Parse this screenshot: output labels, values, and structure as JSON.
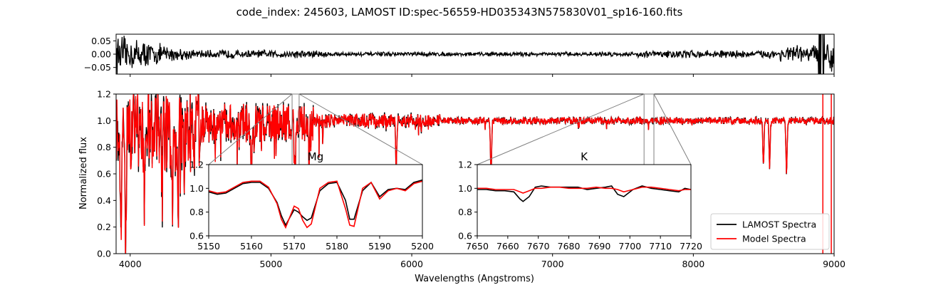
{
  "figure": {
    "title": "code_index: 245603, LAMOST ID:spec-56559-HD035343N575830V01_sp16-160.fits"
  },
  "chart_data": [
    {
      "id": "residual",
      "type": "line",
      "xlim": [
        3900,
        9000
      ],
      "ylim": [
        -0.075,
        0.075
      ],
      "yticks": [
        {
          "v": 0.05,
          "label": "0.05"
        },
        {
          "v": 0.0,
          "label": "0.00"
        },
        {
          "v": -0.05,
          "label": "−0.05"
        }
      ],
      "xticks": [
        4000,
        5000,
        6000,
        7000,
        8000,
        9000
      ],
      "series": [
        {
          "color": "#000000",
          "noise": "increases toward the blue (<4500) and red (>8500) ends, range about ±0.07"
        }
      ]
    },
    {
      "id": "main",
      "type": "line",
      "xlim": [
        3900,
        9000
      ],
      "ylim": [
        0.0,
        1.2
      ],
      "xlabel": "Wavelengths (Angstroms)",
      "ylabel": "Normalized flux",
      "xticks": [
        {
          "v": 4000,
          "label": "4000"
        },
        {
          "v": 5000,
          "label": "5000"
        },
        {
          "v": 6000,
          "label": "6000"
        },
        {
          "v": 7000,
          "label": "7000"
        },
        {
          "v": 8000,
          "label": "8000"
        },
        {
          "v": 9000,
          "label": "9000"
        }
      ],
      "yticks": [
        {
          "v": 0.0,
          "label": "0.0"
        },
        {
          "v": 0.2,
          "label": "0.2"
        },
        {
          "v": 0.4,
          "label": "0.4"
        },
        {
          "v": 0.6,
          "label": "0.6"
        },
        {
          "v": 0.8,
          "label": "0.8"
        },
        {
          "v": 1.0,
          "label": "1.0"
        },
        {
          "v": 1.2,
          "label": "1.2"
        }
      ],
      "legend": {
        "position": "lower-right",
        "entries": [
          {
            "label": "LAMOST Spectra",
            "color": "#000000"
          },
          {
            "label": "Model Spectra",
            "color": "#ff0000"
          }
        ]
      },
      "features": [
        {
          "x": 3934,
          "depth": 0.88
        },
        {
          "x": 3968,
          "depth": 0.85
        },
        {
          "x": 4101,
          "depth": 0.45
        },
        {
          "x": 4227,
          "depth": 0.45
        },
        {
          "x": 4300,
          "depth": 0.6
        },
        {
          "x": 4340,
          "depth": 0.55
        },
        {
          "x": 4384,
          "depth": 0.35
        },
        {
          "x": 4861,
          "depth": 0.35
        },
        {
          "x": 5167,
          "depth": 0.35
        },
        {
          "x": 5270,
          "depth": 0.3
        },
        {
          "x": 5890,
          "depth": 0.35
        },
        {
          "x": 6563,
          "depth": 0.42
        },
        {
          "x": 8498,
          "depth": 0.35
        },
        {
          "x": 8542,
          "depth": 0.35
        },
        {
          "x": 8662,
          "depth": 0.38
        }
      ],
      "zoom_regions": [
        {
          "label": "Mg",
          "xlim": [
            5150,
            5200
          ]
        },
        {
          "label": "K",
          "xlim": [
            7650,
            7720
          ]
        }
      ]
    },
    {
      "id": "inset-mg",
      "title": "Mg",
      "type": "line",
      "xlim": [
        5150,
        5200
      ],
      "ylim": [
        0.6,
        1.2
      ],
      "xticks": [
        {
          "v": 5150,
          "label": "5150"
        },
        {
          "v": 5160,
          "label": "5160"
        },
        {
          "v": 5170,
          "label": "5170"
        },
        {
          "v": 5180,
          "label": "5180"
        },
        {
          "v": 5190,
          "label": "5190"
        },
        {
          "v": 5200,
          "label": "5200"
        }
      ],
      "yticks": [
        {
          "v": 0.6,
          "label": "0.6"
        },
        {
          "v": 0.8,
          "label": "0.8"
        },
        {
          "v": 1.0,
          "label": "1.0"
        },
        {
          "v": 1.2,
          "label": "1.2"
        }
      ],
      "series": [
        {
          "name": "LAMOST Spectra",
          "color": "#000000",
          "x": [
            5150,
            5152,
            5154,
            5156,
            5158,
            5160,
            5162,
            5164,
            5166,
            5167,
            5168,
            5170,
            5171,
            5172,
            5173,
            5174,
            5176,
            5178,
            5180,
            5182,
            5183,
            5184,
            5186,
            5188,
            5190,
            5192,
            5194,
            5196,
            5198,
            5200
          ],
          "y": [
            0.97,
            0.95,
            0.96,
            1.0,
            1.04,
            1.05,
            1.05,
            1.0,
            0.88,
            0.77,
            0.69,
            0.82,
            0.8,
            0.76,
            0.73,
            0.75,
            0.98,
            1.04,
            1.05,
            0.9,
            0.74,
            0.74,
            0.98,
            1.05,
            0.93,
            0.99,
            1.0,
            0.99,
            1.05,
            1.07
          ]
        },
        {
          "name": "Model Spectra",
          "color": "#ff0000",
          "x": [
            5150,
            5152,
            5154,
            5156,
            5158,
            5160,
            5162,
            5164,
            5166,
            5167,
            5168,
            5170,
            5171,
            5172,
            5173,
            5174,
            5176,
            5178,
            5180,
            5182,
            5183,
            5184,
            5186,
            5188,
            5190,
            5192,
            5194,
            5196,
            5198,
            5200
          ],
          "y": [
            0.98,
            0.96,
            0.97,
            1.01,
            1.05,
            1.06,
            1.06,
            1.01,
            0.87,
            0.74,
            0.67,
            0.85,
            0.83,
            0.73,
            0.67,
            0.7,
            1.0,
            1.05,
            1.06,
            0.83,
            0.69,
            0.68,
            1.0,
            1.05,
            0.91,
            0.98,
            1.0,
            0.98,
            1.04,
            1.06
          ]
        }
      ]
    },
    {
      "id": "inset-k",
      "title": "K",
      "type": "line",
      "xlim": [
        7650,
        7720
      ],
      "ylim": [
        0.6,
        1.2
      ],
      "xticks": [
        {
          "v": 7650,
          "label": "7650"
        },
        {
          "v": 7660,
          "label": "7660"
        },
        {
          "v": 7670,
          "label": "7670"
        },
        {
          "v": 7680,
          "label": "7680"
        },
        {
          "v": 7690,
          "label": "7690"
        },
        {
          "v": 7700,
          "label": "7700"
        },
        {
          "v": 7710,
          "label": "7710"
        },
        {
          "v": 7720,
          "label": "7720"
        }
      ],
      "yticks": [
        {
          "v": 0.6,
          "label": "0.6"
        },
        {
          "v": 0.8,
          "label": "0.8"
        },
        {
          "v": 1.0,
          "label": "1.0"
        },
        {
          "v": 1.2,
          "label": "1.2"
        }
      ],
      "series": [
        {
          "name": "LAMOST Spectra",
          "color": "#000000",
          "x": [
            7650,
            7653,
            7656,
            7659,
            7662,
            7664,
            7665,
            7667,
            7669,
            7671,
            7674,
            7677,
            7680,
            7683,
            7686,
            7689,
            7692,
            7694,
            7696,
            7698,
            7701,
            7704,
            7707,
            7710,
            7713,
            7716,
            7718,
            7720
          ],
          "y": [
            0.99,
            0.99,
            0.98,
            0.98,
            0.97,
            0.91,
            0.89,
            0.93,
            1.01,
            1.02,
            1.01,
            1.01,
            1.01,
            1.01,
            0.99,
            1.0,
            1.01,
            1.02,
            0.95,
            0.93,
            0.99,
            1.02,
            1.0,
            0.99,
            0.98,
            0.97,
            1.0,
            0.99
          ]
        },
        {
          "name": "Model Spectra",
          "color": "#ff0000",
          "x": [
            7650,
            7653,
            7656,
            7659,
            7662,
            7664,
            7665,
            7667,
            7669,
            7671,
            7674,
            7677,
            7680,
            7683,
            7686,
            7689,
            7692,
            7694,
            7696,
            7698,
            7701,
            7704,
            7707,
            7710,
            7713,
            7716,
            7718,
            7720
          ],
          "y": [
            1.0,
            1.0,
            0.99,
            0.99,
            0.99,
            0.97,
            0.96,
            0.98,
            1.0,
            1.0,
            1.01,
            1.01,
            1.0,
            1.0,
            1.0,
            1.01,
            1.0,
            1.0,
            0.99,
            0.97,
            0.99,
            1.01,
            1.01,
            1.0,
            0.99,
            0.98,
            0.99,
            0.99
          ]
        }
      ]
    }
  ]
}
